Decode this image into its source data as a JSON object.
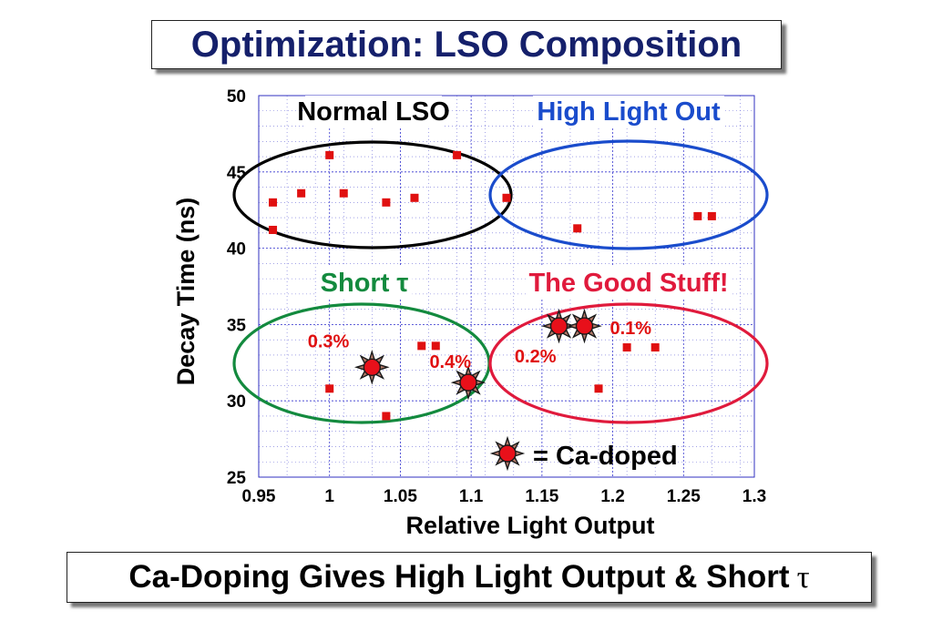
{
  "header": {
    "title": "Optimization: LSO Composition"
  },
  "footer": {
    "text": "Ca-Doping Gives High Light Output & Short",
    "symbol": "τ"
  },
  "chart_data": {
    "type": "scatter",
    "xlabel": "Relative Light Output",
    "ylabel": "Decay Time (ns)",
    "xlim": [
      0.95,
      1.3
    ],
    "ylim": [
      25,
      50
    ],
    "xticks": [
      "0.95",
      "1",
      "1.05",
      "1.1",
      "1.15",
      "1.2",
      "1.25",
      "1.3"
    ],
    "yticks": [
      "25",
      "30",
      "35",
      "40",
      "45",
      "50"
    ],
    "xtick_values": [
      0.95,
      1.0,
      1.05,
      1.1,
      1.15,
      1.2,
      1.25,
      1.3
    ],
    "ytick_values": [
      25,
      30,
      35,
      40,
      45,
      50
    ],
    "grid": true,
    "series": [
      {
        "marker": "square",
        "color": "#e01010",
        "points": [
          [
            0.96,
            43.0
          ],
          [
            0.96,
            41.2
          ],
          [
            0.98,
            43.6
          ],
          [
            1.0,
            46.1
          ],
          [
            1.01,
            43.6
          ],
          [
            1.04,
            43.0
          ],
          [
            1.06,
            43.3
          ],
          [
            1.09,
            46.1
          ],
          [
            1.125,
            43.3
          ],
          [
            1.175,
            41.3
          ],
          [
            1.26,
            42.1
          ],
          [
            1.27,
            42.1
          ],
          [
            1.0,
            30.8
          ],
          [
            1.04,
            29.0
          ],
          [
            1.065,
            33.6
          ],
          [
            1.075,
            33.6
          ],
          [
            1.19,
            30.8
          ],
          [
            1.21,
            33.5
          ],
          [
            1.23,
            33.5
          ]
        ]
      },
      {
        "name": "Ca-doped",
        "marker": "star",
        "color": "#e8101a",
        "points": [
          {
            "x": 1.03,
            "y": 32.2,
            "label": "0.3%"
          },
          {
            "x": 1.098,
            "y": 31.2,
            "label": "0.4%"
          },
          {
            "x": 1.162,
            "y": 34.9,
            "label": "0.2%"
          },
          {
            "x": 1.18,
            "y": 34.9,
            "label": "0.1%"
          }
        ]
      }
    ],
    "regions": [
      {
        "label": "Normal LSO",
        "color": "#000000"
      },
      {
        "label": "High Light Out",
        "color": "#1a4ccc"
      },
      {
        "label": "Short τ",
        "color": "#138a3e"
      },
      {
        "label": "The Good Stuff!",
        "color": "#e01a3c"
      }
    ],
    "legend": {
      "text": "= Ca-doped",
      "position": "bottom-right"
    }
  }
}
